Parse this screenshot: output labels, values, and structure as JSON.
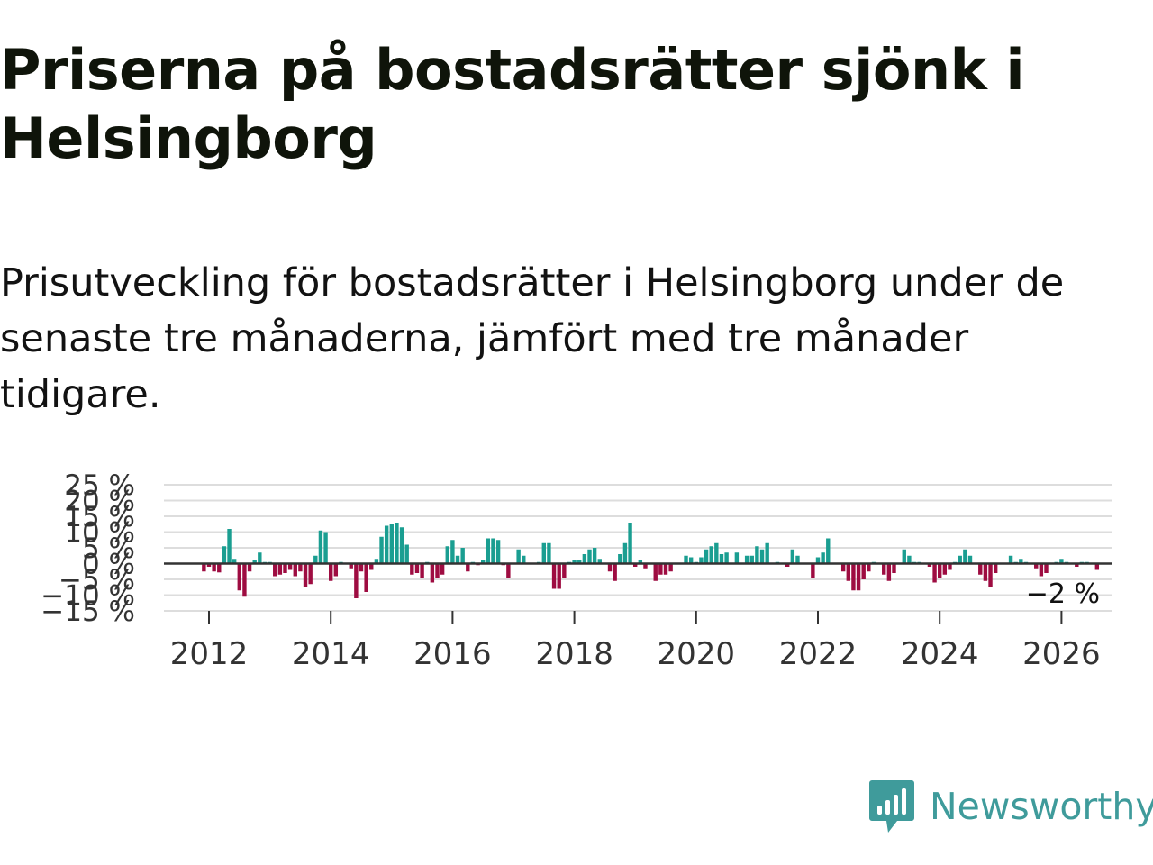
{
  "title": "Priserna på bostadsrätter sjönk i Helsingborg",
  "subtitle": "Prisutveckling för bostadsrätter i Helsingborg under de senaste tre månaderna, jämfört med tre månader tidigare.",
  "brand": "Newsworthy",
  "colors": {
    "positive": "#1a9e91",
    "negative": "#9e0c41",
    "brand": "#3f9b9b",
    "grid": "#dddddd",
    "zero_line": "#333333"
  },
  "chart_data": {
    "type": "bar",
    "title": "",
    "xlabel": "",
    "ylabel": "",
    "ylim": [
      -15,
      25
    ],
    "xlim": [
      2010.6,
      2026.8
    ],
    "y_ticks": [
      {
        "value": 25,
        "label": "25 %"
      },
      {
        "value": 20,
        "label": "20 %"
      },
      {
        "value": 15,
        "label": "15 %"
      },
      {
        "value": 10,
        "label": "10 %"
      },
      {
        "value": 5,
        "label": "5 %"
      },
      {
        "value": 0,
        "label": "0 %"
      },
      {
        "value": -5,
        "label": "−5 %"
      },
      {
        "value": -10,
        "label": "−10 %"
      },
      {
        "value": -15,
        "label": "−15 %"
      }
    ],
    "x_ticks": [
      2012,
      2014,
      2016,
      2018,
      2020,
      2022,
      2024,
      2026
    ],
    "start_year": 2011,
    "start_month": 12,
    "last_value_label": "−2 %",
    "values": [
      -2.5,
      -1.0,
      -2.5,
      -2.8,
      5.5,
      11.0,
      1.5,
      -8.5,
      -10.5,
      -2.5,
      1.0,
      3.5,
      0.5,
      0.5,
      -4.0,
      -3.5,
      -3.0,
      -2.0,
      -4.0,
      -2.5,
      -7.5,
      -6.5,
      2.5,
      10.5,
      10.0,
      -5.5,
      -4.0,
      0.5,
      0.0,
      -1.5,
      -11.0,
      -2.5,
      -9.0,
      -2.0,
      1.5,
      8.5,
      12.0,
      12.5,
      13.0,
      11.5,
      6.0,
      -3.5,
      -3.0,
      -4.5,
      0.5,
      -6.0,
      -4.5,
      -3.5,
      5.5,
      7.5,
      2.5,
      5.0,
      -2.5,
      0.5,
      -0.5,
      1.0,
      8.0,
      8.0,
      7.5,
      -0.5,
      -4.5,
      0.0,
      4.5,
      2.5,
      0.0,
      0.0,
      0.5,
      6.5,
      6.5,
      -8.0,
      -8.0,
      -4.5,
      0.5,
      1.0,
      1.0,
      3.0,
      4.5,
      5.0,
      1.5,
      0.0,
      -2.5,
      -5.5,
      3.0,
      6.5,
      13.0,
      -1.0,
      1.0,
      -1.5,
      0.0,
      -5.5,
      -3.5,
      -3.5,
      -2.5,
      0.0,
      0.0,
      2.5,
      2.0,
      0.5,
      2.0,
      4.5,
      5.5,
      6.5,
      3.0,
      3.5,
      0.0,
      3.5,
      0.0,
      2.5,
      2.5,
      5.5,
      4.5,
      6.5,
      0.0,
      0.5,
      0.0,
      -1.0,
      4.5,
      2.5,
      0.0,
      0.0,
      -4.5,
      2.0,
      3.5,
      8.0,
      0.0,
      0.0,
      -2.5,
      -5.5,
      -8.5,
      -8.5,
      -5.0,
      -2.5,
      0.5,
      0.0,
      -3.5,
      -5.5,
      -3.0,
      0.0,
      4.5,
      2.5,
      0.5,
      0.5,
      0.0,
      -1.0,
      -6.0,
      -4.5,
      -3.5,
      -2.0,
      0.5,
      2.5,
      4.5,
      2.5,
      0.0,
      -3.5,
      -5.5,
      -7.5,
      -3.0,
      0.0,
      0.0,
      2.5,
      0.5,
      1.5,
      0.5,
      0.0,
      -1.5,
      -4.0,
      -3.0,
      0.0,
      0.5,
      1.5,
      0.5,
      0.0,
      -1.0,
      0.5,
      0.5,
      0.0,
      -2.0
    ]
  }
}
